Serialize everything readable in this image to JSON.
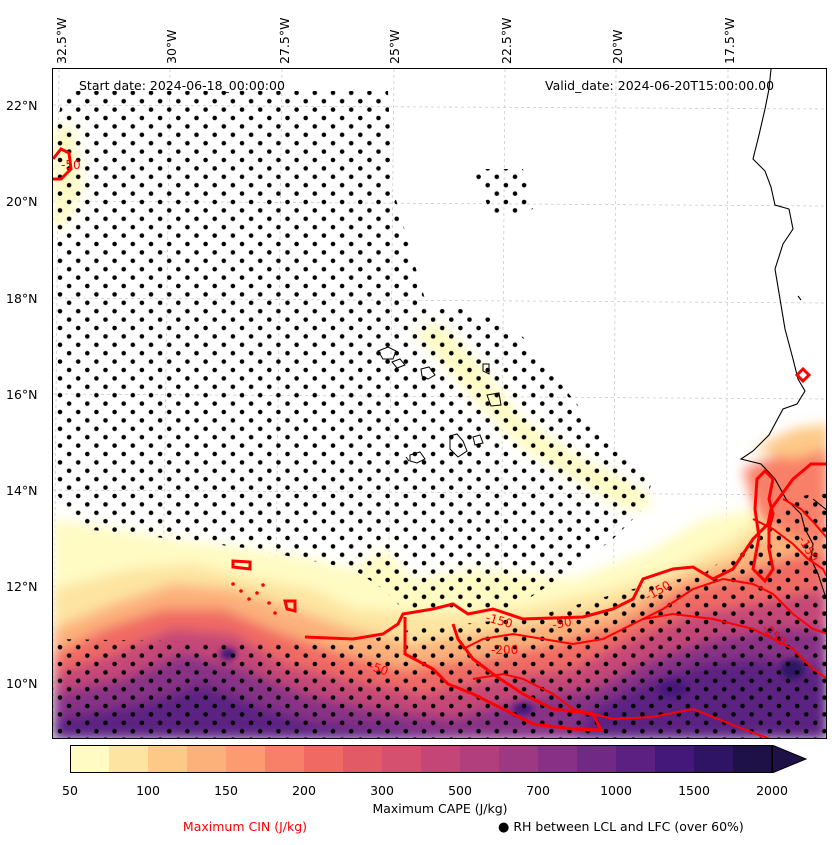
{
  "map": {
    "start_date": "Start date: 2024-06-18_00:00:00",
    "valid_date": "Valid_date: 2024-06-20T15:00:00.00",
    "lon_labels": [
      "32.5°W",
      "30°W",
      "27.5°W",
      "25°W",
      "22.5°W",
      "20°W",
      "17.5°W"
    ],
    "lat_labels": [
      "22°N",
      "20°N",
      "18°N",
      "16°N",
      "14°N",
      "12°N",
      "10°N"
    ],
    "extent": {
      "lon_min": -32.6,
      "lon_max": -15.3,
      "lat_min": 8.9,
      "lat_max": 22.8
    },
    "cin_contour_labels": [
      "-50",
      "-50",
      "-150",
      "-150",
      "-200",
      "-250",
      "-50",
      "-150"
    ]
  },
  "colorbar": {
    "title": "Maximum CAPE (J/kg)",
    "tick_labels": [
      "50",
      "100",
      "150",
      "200",
      "300",
      "500",
      "700",
      "1000",
      "1500",
      "2000"
    ],
    "colors": [
      "#fffbc3",
      "#fde4a0",
      "#fdc987",
      "#fcb07a",
      "#fc9a70",
      "#f98068",
      "#f06a63",
      "#e35a67",
      "#d54f6f",
      "#c44677",
      "#b13f7e",
      "#9d3883",
      "#873086",
      "#702a86",
      "#5b2082",
      "#44177a",
      "#2f1466",
      "#1e1148"
    ]
  },
  "legend": {
    "cin_label": "Maximum CIN (J/kg)",
    "rh_label": "RH between LCL and LFC (over 60%)",
    "rh_marker_icon": "filled-circle-icon"
  },
  "chart_data": {
    "type": "heatmap",
    "title": "",
    "xlabel": "",
    "ylabel": "",
    "variables": [
      "Maximum CAPE (J/kg)",
      "Maximum CIN (J/kg)",
      "RH between LCL and LFC (over 60%)"
    ],
    "cape_levels": [
      50,
      100,
      150,
      200,
      300,
      500,
      700,
      1000,
      1500,
      2000
    ],
    "cin_contours_drawn": [
      -50,
      -150,
      -200,
      -250
    ]
  }
}
